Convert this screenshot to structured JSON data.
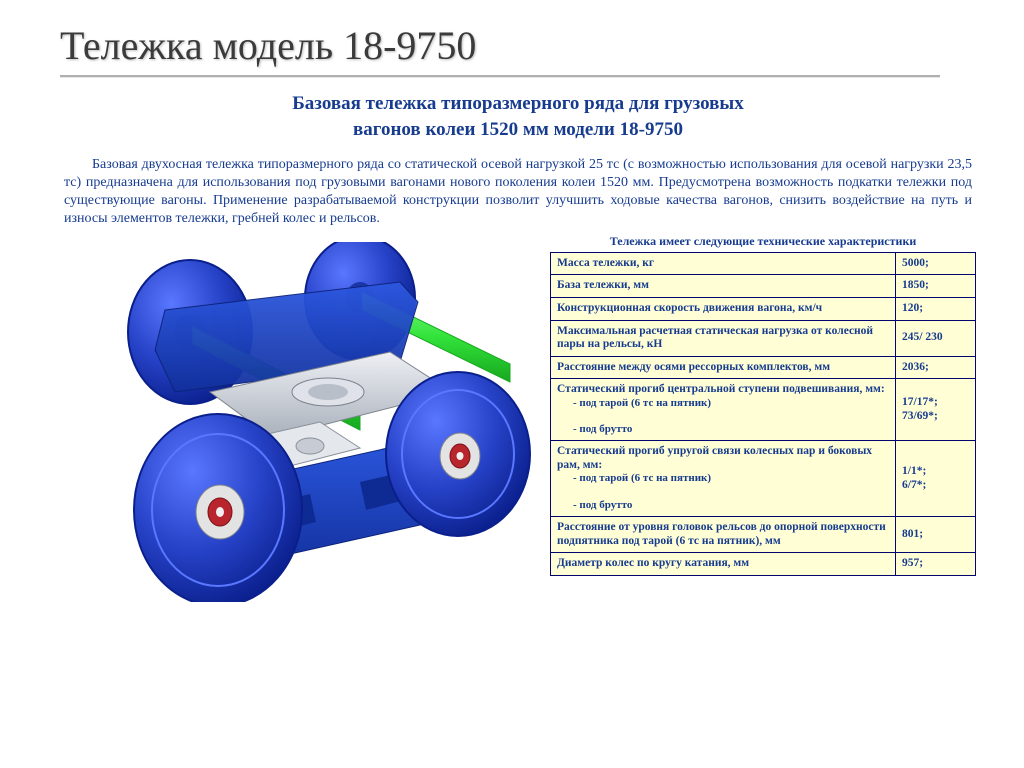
{
  "slide": {
    "title": "Тележка модель 18-9750"
  },
  "doc": {
    "heading_line1": "Базовая тележка типоразмерного ряда для грузовых",
    "heading_line2": "вагонов колеи 1520 мм модели 18-9750",
    "intro": "Базовая двухосная тележка типоразмерного ряда со статической осевой нагрузкой 25 тс (с возможностью использования для осевой нагрузки 23,5 тс) предназначена для использования под грузовыми вагонами нового поколения колеи 1520 мм. Предусмотрена возможность подкатки тележки под существующие вагоны. Применение разрабатываемой конструкции позволит улучшить ходовые качества вагонов, снизить воздействие на путь и износы элементов тележки, гребней колес и рельсов."
  },
  "table": {
    "caption": "Тележка имеет следующие технические характеристики",
    "rows": [
      {
        "label": "Масса тележки, кг",
        "value": "5000;"
      },
      {
        "label": "База тележки, мм",
        "value": "1850;"
      },
      {
        "label": "Конструкционная скорость движения вагона, км/ч",
        "value": "120;"
      },
      {
        "label": "Максимальная расчетная статическая нагрузка от колесной пары на рельсы, кН",
        "value": "245/ 230"
      },
      {
        "label": "Расстояние между осями рессорных комплектов, мм",
        "value": "2036;"
      },
      {
        "label": "Статический прогиб центральной ступени подвешивания, мм:\n- под тарой (6 тс на пятник)\n- под брутто",
        "value": "17/17*;\n73/69*;"
      },
      {
        "label": "Статический прогиб упругой связи колесных пар и боковых рам, мм:\n- под тарой (6 тс на пятник)\n- под брутто",
        "value": "1/1*;\n6/7*;"
      },
      {
        "label": "Расстояние от уровня головок рельсов до опорной поверхности подпятника под тарой (6 тс на пятник), мм",
        "value": "801;"
      },
      {
        "label": "Диаметр колес по кругу катания, мм",
        "value": "957;"
      }
    ]
  },
  "diagram": {
    "type": "engineering-render",
    "bg": "#ffffff",
    "wheel_color": "#2642c7",
    "wheel_edge": "#0a1f8c",
    "axle_color": "#32e23a",
    "axle_edge": "#17a81f",
    "frame_color": "#1a3fbf",
    "frame_top": "#2c58e0",
    "suspension_color": "#2157d4",
    "hub_outer": "#b9252c",
    "hub_inner": "#e3e3e3",
    "bolster_color": "#cfd4db"
  },
  "colors": {
    "text_blue": "#163b8f",
    "cell_bg": "#fffed5",
    "cell_border": "#00066d",
    "title_gray": "#3b3b3b",
    "rule_gray": "#b0b0b0"
  }
}
